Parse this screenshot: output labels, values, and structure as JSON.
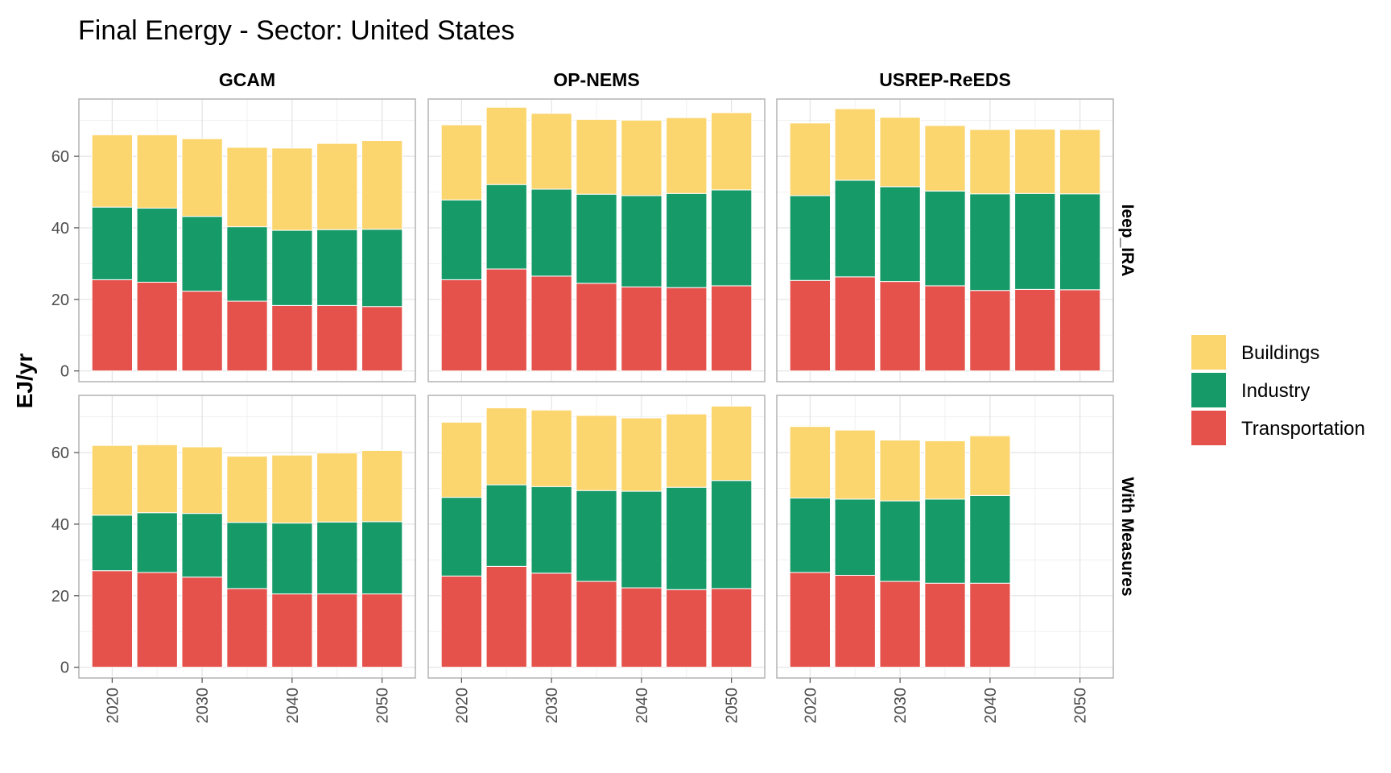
{
  "chart_data": {
    "type": "bar",
    "stacked": true,
    "title": "Final Energy - Sector: United States",
    "xlabel": "",
    "ylabel": "EJ/yr",
    "ylim": [
      -3,
      76
    ],
    "y_ticks": [
      0,
      20,
      40,
      60
    ],
    "x_ticks": [
      2020,
      2030,
      2040,
      2050
    ],
    "xlim": [
      2016.3,
      2053.7
    ],
    "grid": true,
    "legend_position": "right",
    "columns": [
      "GCAM",
      "OP-NEMS",
      "USREP-ReEDS"
    ],
    "rows": [
      "Ieep_IRA",
      "With Measures"
    ],
    "series": [
      {
        "name": "Buildings",
        "color": "#FBD56E"
      },
      {
        "name": "Industry",
        "color": "#159A68"
      },
      {
        "name": "Transportation",
        "color": "#E5524C"
      }
    ],
    "panels": [
      {
        "row": "Ieep_IRA",
        "column": "GCAM",
        "x": [
          2020,
          2025,
          2030,
          2035,
          2040,
          2045,
          2050
        ],
        "values": {
          "Transportation": [
            25.5,
            24.8,
            22.3,
            19.5,
            18.3,
            18.3,
            18.0
          ],
          "Industry": [
            20.3,
            20.7,
            20.9,
            20.8,
            21.0,
            21.2,
            21.6
          ],
          "Buildings": [
            20.2,
            20.5,
            21.7,
            22.2,
            23.0,
            24.1,
            24.8
          ]
        }
      },
      {
        "row": "Ieep_IRA",
        "column": "OP-NEMS",
        "x": [
          2020,
          2025,
          2030,
          2035,
          2040,
          2045,
          2050
        ],
        "values": {
          "Transportation": [
            25.5,
            28.5,
            26.5,
            24.5,
            23.5,
            23.3,
            23.8
          ],
          "Industry": [
            22.3,
            23.6,
            24.3,
            24.9,
            25.5,
            26.3,
            26.8
          ],
          "Buildings": [
            21.0,
            21.6,
            21.2,
            20.9,
            21.1,
            21.2,
            21.6
          ]
        }
      },
      {
        "row": "Ieep_IRA",
        "column": "USREP-ReEDS",
        "x": [
          2020,
          2025,
          2030,
          2035,
          2040,
          2045,
          2050
        ],
        "values": {
          "Transportation": [
            25.3,
            26.3,
            25.0,
            23.8,
            22.5,
            22.8,
            22.7
          ],
          "Industry": [
            23.7,
            27.0,
            26.5,
            26.5,
            27.0,
            26.8,
            26.8
          ],
          "Buildings": [
            20.3,
            20.0,
            19.4,
            18.3,
            18.0,
            18.0,
            18.0
          ]
        }
      },
      {
        "row": "With Measures",
        "column": "GCAM",
        "x": [
          2020,
          2025,
          2030,
          2035,
          2040,
          2045,
          2050
        ],
        "values": {
          "Transportation": [
            27.0,
            26.5,
            25.2,
            22.0,
            20.5,
            20.5,
            20.5
          ],
          "Industry": [
            15.5,
            16.7,
            17.8,
            18.5,
            19.8,
            20.1,
            20.2
          ],
          "Buildings": [
            19.5,
            19.0,
            18.6,
            18.5,
            19.0,
            19.3,
            19.9
          ]
        }
      },
      {
        "row": "With Measures",
        "column": "OP-NEMS",
        "x": [
          2020,
          2025,
          2030,
          2035,
          2040,
          2045,
          2050
        ],
        "values": {
          "Transportation": [
            25.5,
            28.2,
            26.3,
            24.0,
            22.2,
            21.7,
            22.0
          ],
          "Industry": [
            22.0,
            22.8,
            24.2,
            25.4,
            27.0,
            28.6,
            30.2
          ],
          "Buildings": [
            21.0,
            21.5,
            21.4,
            21.0,
            20.5,
            20.5,
            20.8
          ]
        }
      },
      {
        "row": "With Measures",
        "column": "USREP-ReEDS",
        "x": [
          2020,
          2025,
          2030,
          2035,
          2040
        ],
        "values": {
          "Transportation": [
            26.5,
            25.7,
            24.0,
            23.5,
            23.5
          ],
          "Industry": [
            20.8,
            21.3,
            22.5,
            23.5,
            24.5
          ],
          "Buildings": [
            20.0,
            19.3,
            17.0,
            16.3,
            16.7
          ]
        }
      }
    ]
  }
}
